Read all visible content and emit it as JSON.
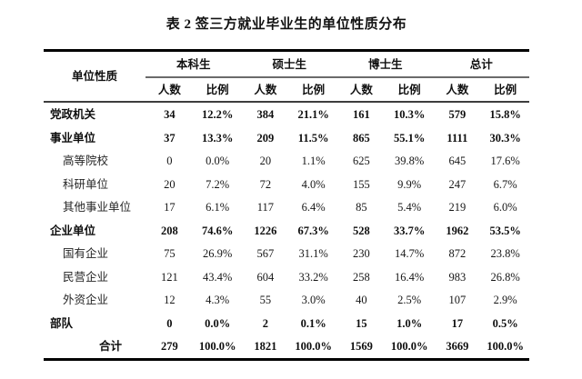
{
  "title": "表 2 签三方就业毕业生的单位性质分布",
  "table": {
    "label_header": "单位性质",
    "group_headers": [
      "本科生",
      "硕士生",
      "博士生",
      "总计"
    ],
    "sub_headers": [
      "人数",
      "比例"
    ],
    "rows": [
      {
        "label": "党政机关",
        "bold": true,
        "indent": false,
        "total": false,
        "values": [
          "34",
          "12.2%",
          "384",
          "21.1%",
          "161",
          "10.3%",
          "579",
          "15.8%"
        ]
      },
      {
        "label": "事业单位",
        "bold": true,
        "indent": false,
        "total": false,
        "values": [
          "37",
          "13.3%",
          "209",
          "11.5%",
          "865",
          "55.1%",
          "1111",
          "30.3%"
        ]
      },
      {
        "label": "高等院校",
        "bold": false,
        "indent": true,
        "total": false,
        "values": [
          "0",
          "0.0%",
          "20",
          "1.1%",
          "625",
          "39.8%",
          "645",
          "17.6%"
        ]
      },
      {
        "label": "科研单位",
        "bold": false,
        "indent": true,
        "total": false,
        "values": [
          "20",
          "7.2%",
          "72",
          "4.0%",
          "155",
          "9.9%",
          "247",
          "6.7%"
        ]
      },
      {
        "label": "其他事业单位",
        "bold": false,
        "indent": true,
        "total": false,
        "values": [
          "17",
          "6.1%",
          "117",
          "6.4%",
          "85",
          "5.4%",
          "219",
          "6.0%"
        ]
      },
      {
        "label": "企业单位",
        "bold": true,
        "indent": false,
        "total": false,
        "values": [
          "208",
          "74.6%",
          "1226",
          "67.3%",
          "528",
          "33.7%",
          "1962",
          "53.5%"
        ]
      },
      {
        "label": "国有企业",
        "bold": false,
        "indent": true,
        "total": false,
        "values": [
          "75",
          "26.9%",
          "567",
          "31.1%",
          "230",
          "14.7%",
          "872",
          "23.8%"
        ]
      },
      {
        "label": "民营企业",
        "bold": false,
        "indent": true,
        "total": false,
        "values": [
          "121",
          "43.4%",
          "604",
          "33.2%",
          "258",
          "16.4%",
          "983",
          "26.8%"
        ]
      },
      {
        "label": "外资企业",
        "bold": false,
        "indent": true,
        "total": false,
        "values": [
          "12",
          "4.3%",
          "55",
          "3.0%",
          "40",
          "2.5%",
          "107",
          "2.9%"
        ]
      },
      {
        "label": "部队",
        "bold": true,
        "indent": false,
        "total": false,
        "values": [
          "0",
          "0.0%",
          "2",
          "0.1%",
          "15",
          "1.0%",
          "17",
          "0.5%"
        ]
      },
      {
        "label": "合计",
        "bold": true,
        "indent": false,
        "total": true,
        "values": [
          "279",
          "100.0%",
          "1821",
          "100.0%",
          "1569",
          "100.0%",
          "3669",
          "100.0%"
        ]
      }
    ]
  },
  "colors": {
    "background": "#ffffff",
    "text": "#161616",
    "rule_heavy": "#000000",
    "rule_medium": "#3d3d3d",
    "rule_light": "#6a6a6a"
  }
}
